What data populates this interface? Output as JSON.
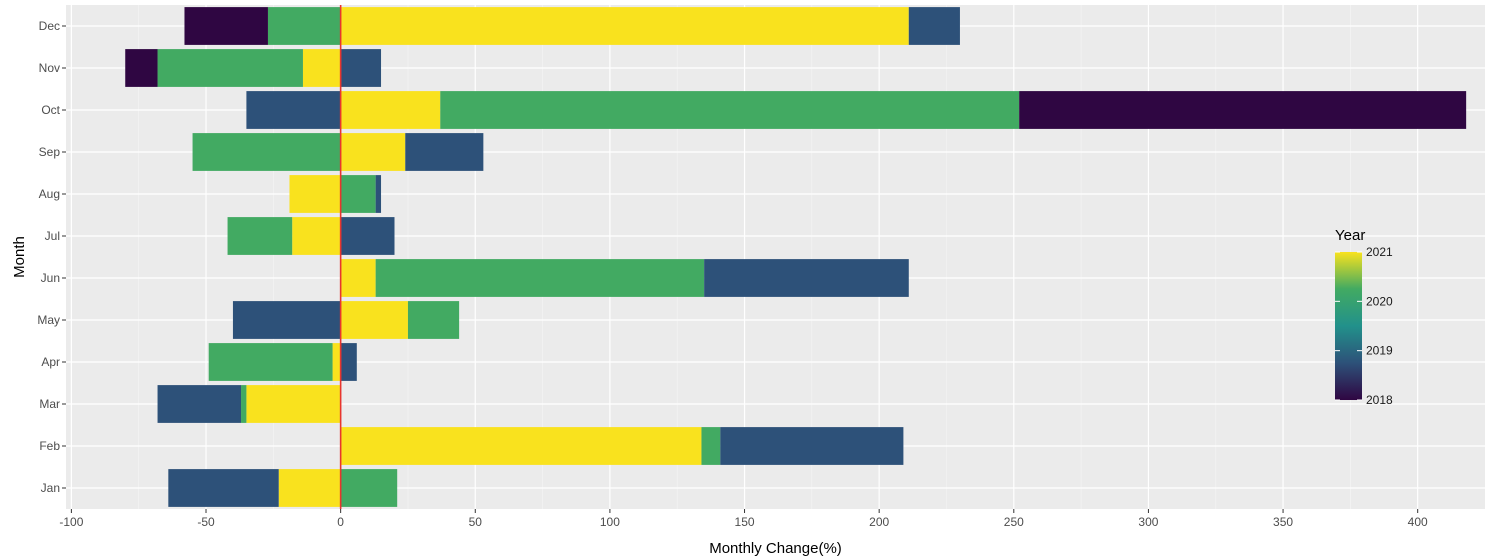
{
  "chart_data": {
    "type": "bar",
    "orientation": "horizontal",
    "stacked": "diverging",
    "xlabel": "Monthly Change(%)",
    "ylabel": "Month",
    "xlim": [
      -102,
      425
    ],
    "xticks": [
      -100,
      -50,
      0,
      50,
      100,
      150,
      200,
      250,
      300,
      350,
      400
    ],
    "categories": [
      "Jan",
      "Feb",
      "Mar",
      "Apr",
      "May",
      "Jun",
      "Jul",
      "Aug",
      "Sep",
      "Oct",
      "Nov",
      "Dec"
    ],
    "series": [
      {
        "name": "2018",
        "color": "#2f0642",
        "values": [
          0,
          0,
          0,
          0,
          0,
          0,
          0,
          0,
          0,
          166,
          -12,
          -31
        ]
      },
      {
        "name": "2019",
        "color": "#2d5179",
        "values": [
          -41,
          68,
          -31,
          6,
          -40,
          76,
          20,
          2,
          29,
          -35,
          15,
          19
        ]
      },
      {
        "name": "2020",
        "color": "#42aa62",
        "values": [
          21,
          7,
          -2,
          -46,
          19,
          122,
          -24,
          13,
          -55,
          215,
          -54,
          -27
        ]
      },
      {
        "name": "2021",
        "color": "#f9e21e",
        "values": [
          -23,
          134,
          -35,
          -3,
          25,
          13,
          -18,
          -19,
          24,
          37,
          -14,
          211
        ]
      }
    ],
    "reference_line": {
      "x": 0,
      "color": "#e8352e"
    },
    "legend": {
      "title": "Year",
      "position": "right",
      "type": "colorbar",
      "breaks": [
        "2018",
        "2019",
        "2020",
        "2021"
      ],
      "colors": [
        "#2f0642",
        "#2d5179",
        "#22918b",
        "#42aa62",
        "#f9e21e"
      ]
    },
    "grid": true,
    "panel_background": "#ebebeb"
  }
}
